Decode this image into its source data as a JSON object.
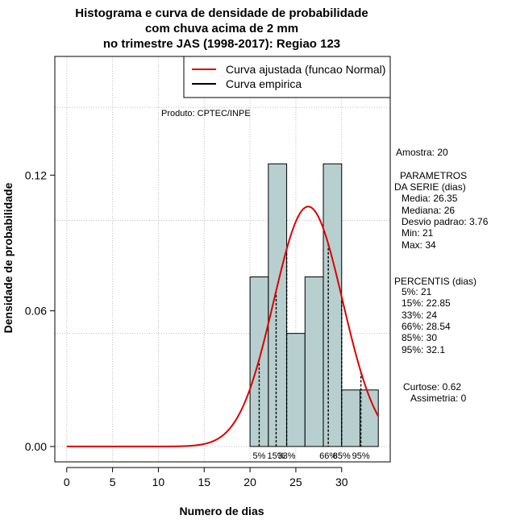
{
  "chart_data": {
    "type": "bar",
    "title_lines": [
      "Histograma e curva de densidade de probabilidade",
      "com chuva acima de 2 mm",
      "no trimestre JAS (1998-2017): Regiao 123"
    ],
    "xlabel": "Numero de dias",
    "ylabel": "Densidade de probabilidade",
    "xlim": [
      -1.3,
      35.3
    ],
    "ylim": [
      -0.0068,
      0.1725
    ],
    "x_ticks": [
      0,
      5,
      10,
      15,
      20,
      25,
      30
    ],
    "x_tick_labels": [
      "0",
      "5",
      "10",
      "15",
      "20",
      "25",
      "30"
    ],
    "y_ticks": [
      0.0,
      0.06,
      0.12
    ],
    "y_tick_labels": [
      "0.00",
      "0.06",
      "0.12"
    ],
    "grid_x": [
      0,
      5,
      10,
      15,
      20,
      25,
      30
    ],
    "grid_y": [
      0.0,
      0.05,
      0.1,
      0.15
    ],
    "histogram": {
      "bin_edges": [
        20,
        22,
        24,
        26,
        28,
        30,
        32,
        34
      ],
      "densities": [
        0.075,
        0.125,
        0.05,
        0.075,
        0.125,
        0.025,
        0.025
      ],
      "fill": "#b8cfcf",
      "stroke": "#000000"
    },
    "normal_curve": {
      "name": "Curva ajustada (funcao Normal)",
      "mean": 26.35,
      "sd": 3.76,
      "x_range": [
        0,
        34
      ],
      "color": "#dd0000"
    },
    "legend": [
      {
        "label": "Curva ajustada (funcao Normal)",
        "color": "#dd0000"
      },
      {
        "label": "Curva empirica",
        "color": "#000000"
      }
    ],
    "legend_position": "top-right",
    "percentile_lines": [
      {
        "label": "5%",
        "x": 21
      },
      {
        "label": "15%",
        "x": 22.85
      },
      {
        "label": "33%",
        "x": 24
      },
      {
        "label": "66%",
        "x": 28.54
      },
      {
        "label": "85%",
        "x": 30
      },
      {
        "label": "95%",
        "x": 32.1
      }
    ],
    "percentile_label_text": [
      "5%",
      "15%",
      "33%",
      "66%",
      "85%",
      "95%"
    ],
    "product_note": "Produto: CPTEC/INPE"
  },
  "side_panel": {
    "sample": "Amostra: 20",
    "params_header_1": "PARAMETROS",
    "params_header_2": "DA SERIE (dias)",
    "media": "Media: 26.35",
    "mediana": "Mediana: 26",
    "desvio": "Desvio padrao: 3.76",
    "min": "Min: 21",
    "max": "Max: 34",
    "percentis_header": "PERCENTIS (dias)",
    "p5": "5%: 21",
    "p15": "15%: 22.85",
    "p33": "33%: 24",
    "p66": "66%: 28.54",
    "p85": "85%: 30",
    "p95": "95%: 32.1",
    "curtose": "Curtose: 0.62",
    "assimetria": "Assimetria: 0"
  }
}
